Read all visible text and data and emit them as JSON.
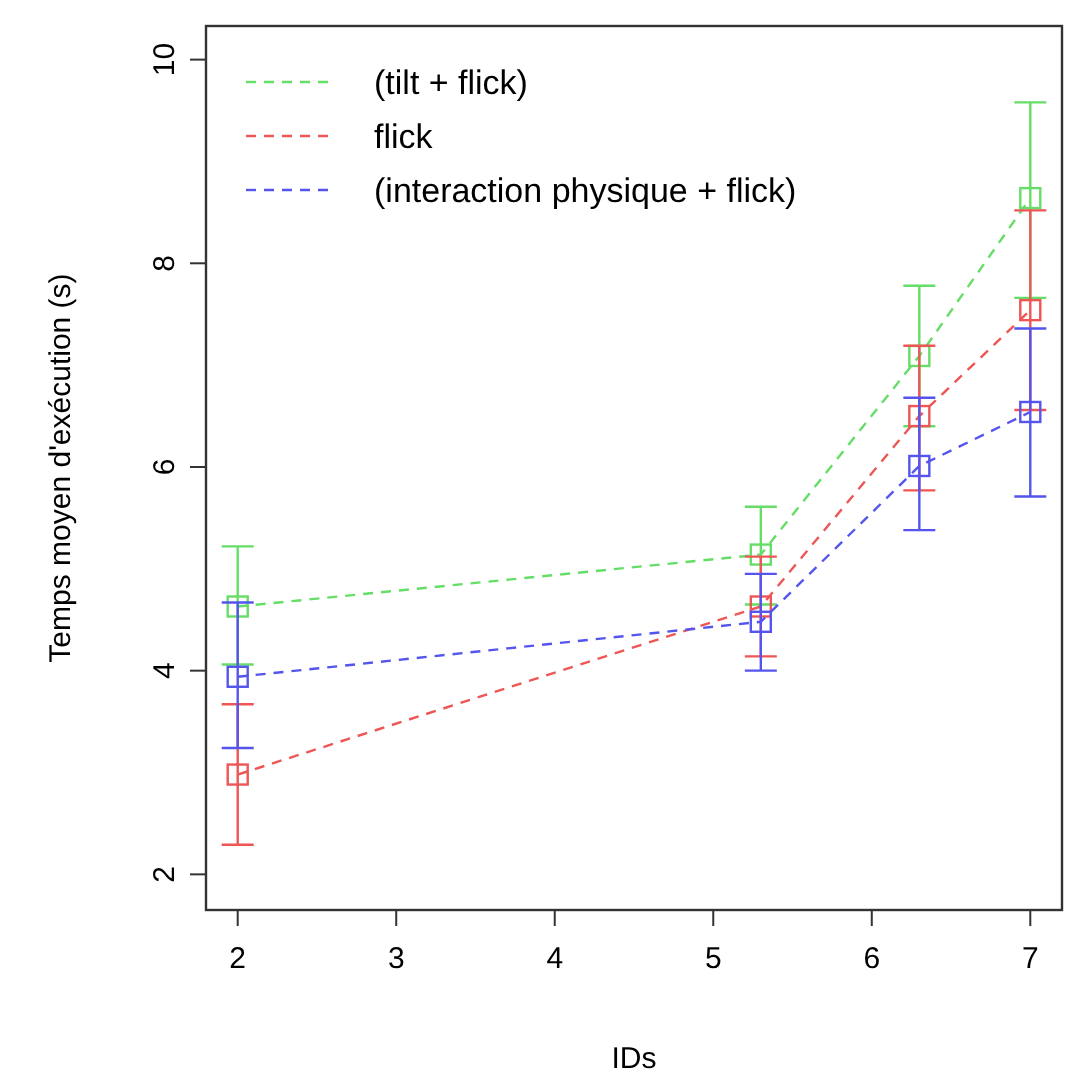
{
  "chart_data": {
    "type": "line",
    "xlabel": "IDs",
    "ylabel": "Temps moyen d'exécution (s)",
    "xlim": [
      1.8,
      7.2
    ],
    "ylim": [
      1.65,
      10.33
    ],
    "xticks": [
      2,
      3,
      4,
      5,
      6,
      7
    ],
    "yticks": [
      2,
      4,
      6,
      8,
      10
    ],
    "x": [
      2,
      5.3,
      6.3,
      7
    ],
    "grid": false,
    "legend": "top left",
    "marker": "square",
    "line_style": "dashed",
    "series": [
      {
        "name": "(tilt + flick)",
        "color": "#66dd66",
        "values": [
          4.63,
          5.14,
          7.09,
          8.64
        ],
        "errors": [
          [
            4.06,
            5.22
          ],
          [
            4.65,
            5.61
          ],
          [
            6.4,
            7.78
          ],
          [
            7.66,
            9.58
          ]
        ]
      },
      {
        "name": "flick",
        "color": "#ee5555",
        "values": [
          2.98,
          4.63,
          6.5,
          7.54
        ],
        "errors": [
          [
            2.29,
            3.67
          ],
          [
            4.14,
            5.12
          ],
          [
            5.77,
            7.19
          ],
          [
            6.56,
            8.52
          ]
        ]
      },
      {
        "name": "(interaction physique + flick)",
        "color": "#5555ee",
        "values": [
          3.94,
          4.48,
          6.01,
          6.54
        ],
        "errors": [
          [
            3.24,
            4.67
          ],
          [
            4.0,
            4.95
          ],
          [
            5.38,
            6.68
          ],
          [
            5.71,
            7.36
          ]
        ]
      }
    ]
  }
}
